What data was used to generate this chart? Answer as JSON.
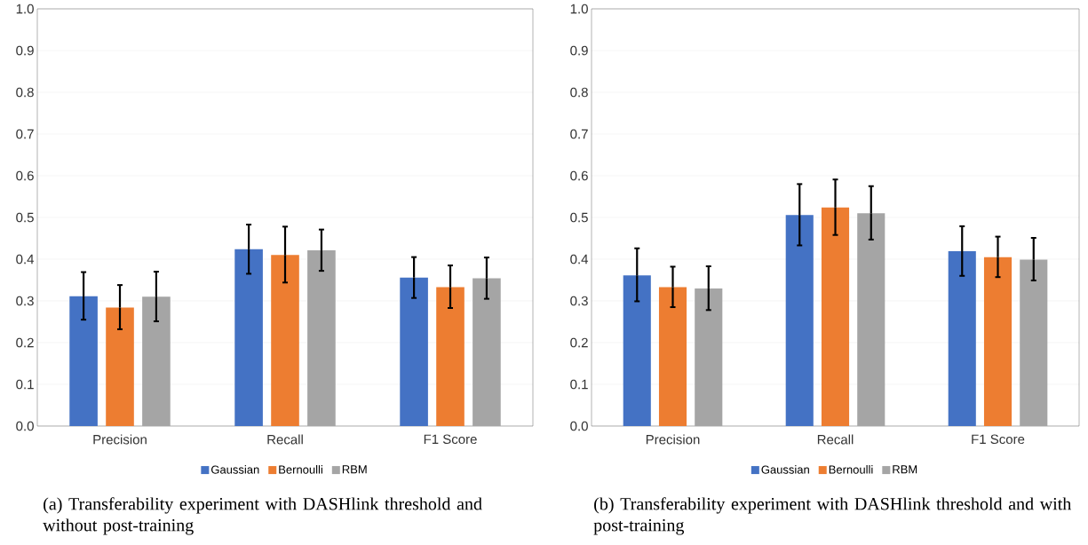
{
  "chart_data": [
    {
      "type": "bar",
      "categories": [
        "Precision",
        "Recall",
        "F1 Score"
      ],
      "series": [
        {
          "name": "Gaussian",
          "color": "#4472c4",
          "values": [
            0.311,
            0.424,
            0.356
          ],
          "errors": [
            [
              0.255,
              0.369
            ],
            [
              0.365,
              0.483
            ],
            [
              0.307,
              0.405
            ]
          ]
        },
        {
          "name": "Bernoulli",
          "color": "#ed7d31",
          "values": [
            0.284,
            0.41,
            0.333
          ],
          "errors": [
            [
              0.232,
              0.338
            ],
            [
              0.344,
              0.478
            ],
            [
              0.283,
              0.385
            ]
          ]
        },
        {
          "name": "RBM",
          "color": "#a5a5a5",
          "values": [
            0.31,
            0.421,
            0.354
          ],
          "errors": [
            [
              0.251,
              0.37
            ],
            [
              0.372,
              0.471
            ],
            [
              0.305,
              0.404
            ]
          ]
        }
      ],
      "ylim": [
        0,
        1
      ],
      "yticks": [
        {
          "value": 0,
          "label": "0.0"
        },
        {
          "value": 0.1,
          "label": "0.1"
        },
        {
          "value": 0.2,
          "label": "0.2"
        },
        {
          "value": 0.3,
          "label": "0.3"
        },
        {
          "value": 0.4,
          "label": "0.4"
        },
        {
          "value": 0.5,
          "label": "0.5"
        },
        {
          "value": 0.6,
          "label": "0.6"
        },
        {
          "value": 0.7,
          "label": "0.7"
        },
        {
          "value": 0.8,
          "label": "0.8"
        },
        {
          "value": 0.9,
          "label": "0.9"
        },
        {
          "value": 1,
          "label": "1.0"
        }
      ],
      "grid": "y",
      "legend": "bottom",
      "annotations": [
        "(a) Transferability experiment with DASHlink threshold and without post-training"
      ]
    },
    {
      "type": "bar",
      "categories": [
        "Precision",
        "Recall",
        "F1 Score"
      ],
      "series": [
        {
          "name": "Gaussian",
          "color": "#4472c4",
          "values": [
            0.361,
            0.506,
            0.419
          ],
          "errors": [
            [
              0.299,
              0.426
            ],
            [
              0.433,
              0.58
            ],
            [
              0.36,
              0.479
            ]
          ]
        },
        {
          "name": "Bernoulli",
          "color": "#ed7d31",
          "values": [
            0.333,
            0.524,
            0.405
          ],
          "errors": [
            [
              0.285,
              0.382
            ],
            [
              0.458,
              0.591
            ],
            [
              0.357,
              0.454
            ]
          ]
        },
        {
          "name": "RBM",
          "color": "#a5a5a5",
          "values": [
            0.33,
            0.51,
            0.399
          ],
          "errors": [
            [
              0.278,
              0.383
            ],
            [
              0.447,
              0.575
            ],
            [
              0.349,
              0.451
            ]
          ]
        }
      ],
      "ylim": [
        0,
        1
      ],
      "yticks": [
        {
          "value": 0,
          "label": "0.0"
        },
        {
          "value": 0.1,
          "label": "0.1"
        },
        {
          "value": 0.2,
          "label": "0.2"
        },
        {
          "value": 0.3,
          "label": "0.3"
        },
        {
          "value": 0.4,
          "label": "0.4"
        },
        {
          "value": 0.5,
          "label": "0.5"
        },
        {
          "value": 0.6,
          "label": "0.6"
        },
        {
          "value": 0.7,
          "label": "0.7"
        },
        {
          "value": 0.8,
          "label": "0.8"
        },
        {
          "value": 0.9,
          "label": "0.9"
        },
        {
          "value": 1,
          "label": "1.0"
        }
      ],
      "grid": "y",
      "legend": "bottom",
      "annotations": [
        "(b) Transferability experiment with DASHlink threshold and with post-training"
      ]
    }
  ]
}
